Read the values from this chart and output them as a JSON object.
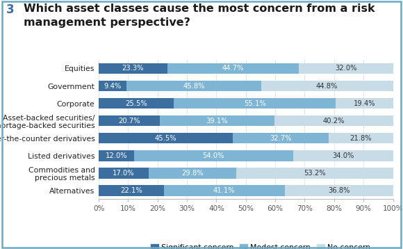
{
  "title_number": "3",
  "title_text": "Which asset classes cause the most concern from a risk\nmanagement perspective?",
  "categories": [
    "Equities",
    "Government",
    "Corporate",
    "Asset-backed securities/\nmortage-backed securities",
    "Over-the-counter derivatives",
    "Listed derivatives",
    "Commodities and\nprecious metals",
    "Alternatives"
  ],
  "significant": [
    23.3,
    9.4,
    25.5,
    20.7,
    45.5,
    12.0,
    17.0,
    22.1
  ],
  "modest": [
    44.7,
    45.8,
    55.1,
    39.1,
    32.7,
    54.0,
    29.8,
    41.1
  ],
  "no_concern": [
    32.0,
    44.8,
    19.4,
    40.2,
    21.8,
    34.0,
    53.2,
    36.8
  ],
  "color_significant": "#3C6E9F",
  "color_modest": "#7EB4D4",
  "color_no": "#C8DCE8",
  "bar_height": 0.62,
  "xlim": [
    0,
    100
  ],
  "xticks": [
    0,
    10,
    20,
    30,
    40,
    50,
    60,
    70,
    80,
    90,
    100
  ],
  "legend_labels": [
    "Significant concern",
    "Modest concern",
    "No concern"
  ],
  "background_color": "#FFFFFF",
  "border_color": "#6BAABF",
  "title_fontsize": 11.5,
  "label_fontsize": 7.8,
  "tick_fontsize": 7.5,
  "bar_label_fontsize": 7.2
}
